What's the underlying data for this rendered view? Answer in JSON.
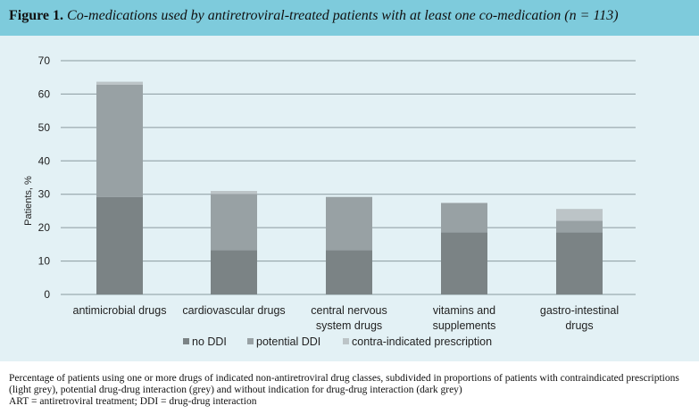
{
  "figure": {
    "label": "Figure 1.",
    "caption": "Co-medications used by antiretroviral-treated patients with at least one co-medication (n = 113)"
  },
  "caption_lines": [
    "Percentage of patients using one or more drugs of indicated non-antiretroviral drug classes, subdivided in proportions of patients with contraindicated prescriptions (light grey), potential drug-drug interaction (grey) and without indication for drug-drug interaction (dark grey)",
    "ART = antiretroviral treatment; DDI = drug-drug interaction"
  ],
  "colors": {
    "header": "#7ecbdc",
    "panel": "#e3f1f5",
    "no_ddi": "#7b8385",
    "potential_ddi": "#98a1a4",
    "contra": "#bcc4c7",
    "grid": "#8a9a9f"
  },
  "chart_data": {
    "type": "bar",
    "stacked": true,
    "categories": [
      [
        "antimicrobial drugs"
      ],
      [
        "cardiovascular drugs"
      ],
      [
        "central nervous",
        "system drugs"
      ],
      [
        "vitamins and",
        "supplements"
      ],
      [
        "gastro-intestinal",
        "drugs"
      ]
    ],
    "series": [
      {
        "name": "no DDI",
        "color": "#7b8385",
        "values": [
          29.2,
          13.3,
          13.3,
          18.6,
          18.6
        ]
      },
      {
        "name": "potential DDI",
        "color": "#98a1a4",
        "values": [
          33.6,
          16.8,
          15.9,
          8.8,
          3.5
        ]
      },
      {
        "name": "contra-indicated prescription",
        "color": "#bcc4c7",
        "values": [
          0.9,
          0.9,
          0,
          0,
          3.5
        ]
      }
    ],
    "ylabel": "Patients, %",
    "xlabel": "",
    "ylim": [
      0,
      70
    ],
    "yticks": [
      0,
      10,
      20,
      30,
      40,
      50,
      60,
      70
    ],
    "grid": true,
    "legend_position": "bottom"
  }
}
